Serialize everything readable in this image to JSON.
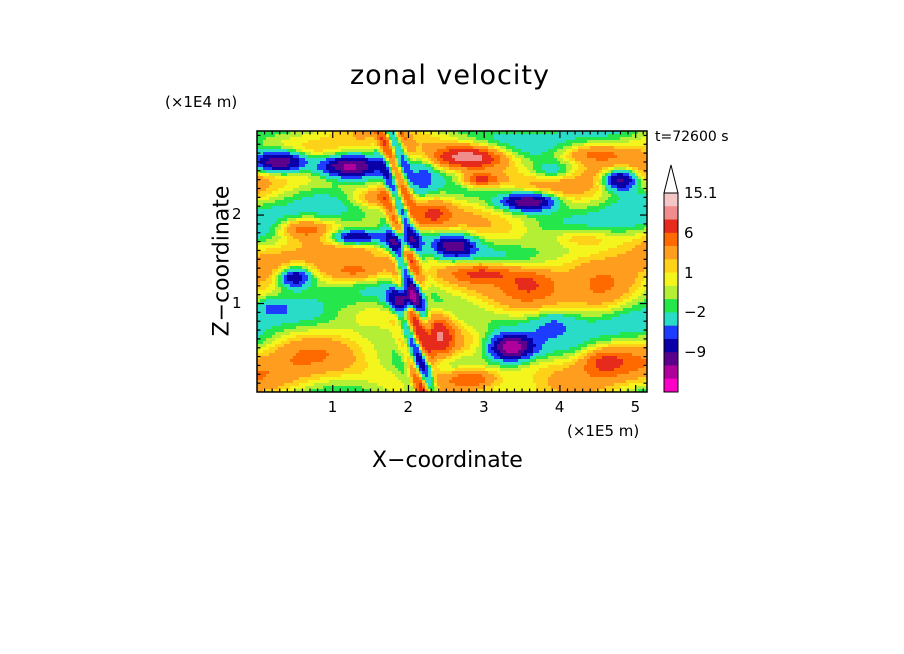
{
  "chart_data": {
    "type": "heatmap",
    "title": "zonal velocity",
    "xlabel": "X−coordinate",
    "ylabel": "Z−coordinate",
    "x_unit": "(×1E5 m)",
    "y_unit": "(×1E4 m)",
    "time_label": "t=72600 s",
    "xlim": [
      0,
      5.15
    ],
    "ylim": [
      0,
      2.95
    ],
    "x_ticks": [
      "1",
      "2",
      "3",
      "4",
      "5"
    ],
    "x_tick_values": [
      1,
      2,
      3,
      4,
      5
    ],
    "y_ticks": [
      "1",
      "2"
    ],
    "y_tick_values": [
      1,
      2
    ],
    "colorbar": {
      "labels": [
        "15.1",
        "6",
        "1",
        "−2",
        "−9"
      ],
      "label_values": [
        15.1,
        6,
        1,
        -2,
        -9
      ],
      "levels_top_to_bottom": [
        15.1,
        12,
        9,
        6,
        4,
        2,
        1,
        0,
        -1,
        -2,
        -4,
        -6,
        -9,
        -12,
        -15
      ],
      "colors_top_to_bottom": [
        "#f4c6c6",
        "#f08c8c",
        "#e62a1c",
        "#ff6a00",
        "#ff9d1f",
        "#ffd21a",
        "#f5f51e",
        "#b4ef36",
        "#25e64b",
        "#28dcc8",
        "#1e3cff",
        "#0a00a8",
        "#5a008c",
        "#b0009c",
        "#ff00c8"
      ],
      "extend_top": true
    }
  }
}
